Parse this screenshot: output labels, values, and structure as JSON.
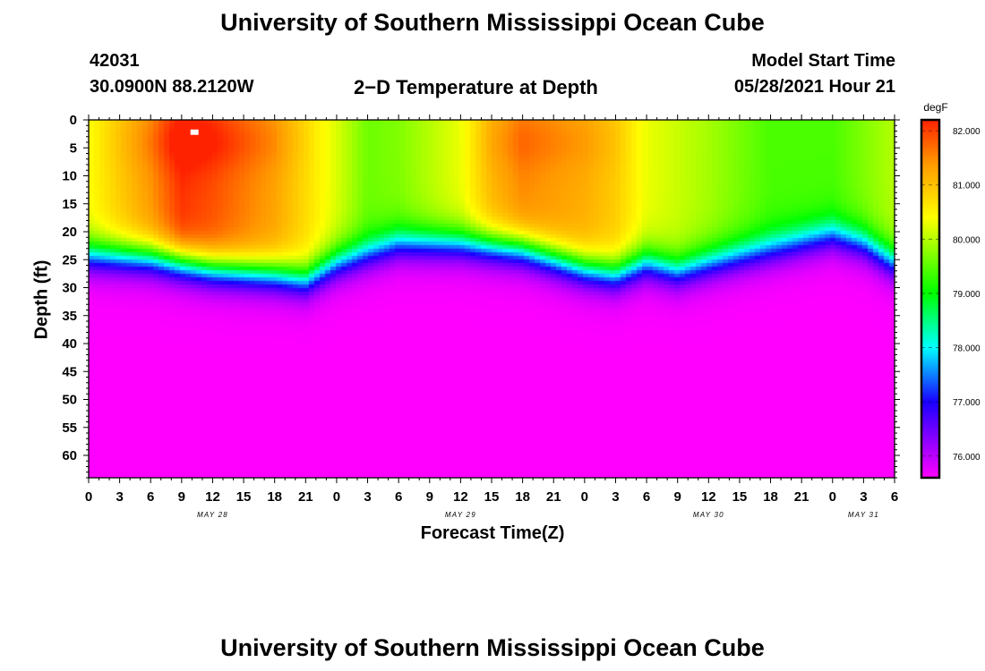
{
  "page": {
    "title_top": "University of Southern Mississippi Ocean Cube",
    "title_bottom": "University of Southern Mississippi Ocean Cube",
    "station_id": "42031",
    "location": "30.0900N  88.2120W",
    "plot_title": "2−D Temperature at Depth",
    "model_start_label": "Model Start Time",
    "model_start_value": "05/28/2021 Hour 21"
  },
  "colors": {
    "scale": [
      "#ff00ff",
      "#1a00ff",
      "#00ffff",
      "#00ff00",
      "#ffff00",
      "#ff9900",
      "#ff2200"
    ],
    "scale_stops": [
      75.6,
      77.0,
      78.0,
      79.0,
      80.4,
      81.4,
      82.2
    ],
    "marker": "#ffffff"
  },
  "chart_data": {
    "type": "heatmap",
    "title": "2−D Temperature at Depth",
    "xlabel": "Forecast Time(Z)",
    "ylabel": "Depth (ft)",
    "x_range_hours": [
      0,
      78
    ],
    "y_range_ft": [
      0,
      64
    ],
    "x_tick_labels": [
      "0",
      "3",
      "6",
      "9",
      "12",
      "15",
      "18",
      "21",
      "0",
      "3",
      "6",
      "9",
      "12",
      "15",
      "18",
      "21",
      "0",
      "3",
      "6",
      "9",
      "12",
      "15",
      "18",
      "21",
      "0",
      "3",
      "6"
    ],
    "x_day_labels": [
      {
        "label": "MAY 28",
        "hour": 12
      },
      {
        "label": "MAY 29",
        "hour": 36
      },
      {
        "label": "MAY 30",
        "hour": 60
      },
      {
        "label": "MAY 31",
        "hour": 75
      }
    ],
    "y_tick_labels": [
      "0",
      "5",
      "10",
      "15",
      "20",
      "25",
      "30",
      "35",
      "40",
      "45",
      "50",
      "55",
      "60"
    ],
    "y_tick_values": [
      0,
      5,
      10,
      15,
      20,
      25,
      30,
      35,
      40,
      45,
      50,
      55,
      60
    ],
    "colorbar": {
      "unit": "degF",
      "min": 75.6,
      "max": 82.2,
      "tick_values": [
        76,
        77,
        78,
        79,
        80,
        81,
        82
      ],
      "tick_labels": [
        "76.000",
        "77.000",
        "78.000",
        "79.000",
        "80.000",
        "81.000",
        "82.000"
      ]
    },
    "thermocline_depth_ft": {
      "hours": [
        0,
        6,
        12,
        18,
        21,
        24,
        30,
        36,
        42,
        48,
        51,
        54,
        57,
        60,
        66,
        72,
        75,
        78
      ],
      "depth": [
        25.5,
        26,
        28,
        29,
        30,
        27,
        23.5,
        23.5,
        24.5,
        28,
        29,
        27,
        28.5,
        27,
        24.5,
        22,
        23.5,
        27
      ]
    },
    "surface_temperature_degF": {
      "hours": [
        0,
        6,
        9,
        12,
        18,
        24,
        27,
        30,
        36,
        39,
        42,
        48,
        51,
        54,
        60,
        66,
        72,
        78
      ],
      "temp": [
        80.4,
        81.4,
        82.1,
        81.9,
        81.3,
        80.2,
        79.6,
        79.7,
        80.3,
        81.1,
        81.5,
        81.2,
        80.9,
        80.3,
        79.9,
        79.4,
        79.4,
        80.0
      ]
    },
    "deep_temperature_degF": 75.6,
    "marker": {
      "hour": 10.2,
      "depth_ft": 2.2
    }
  }
}
